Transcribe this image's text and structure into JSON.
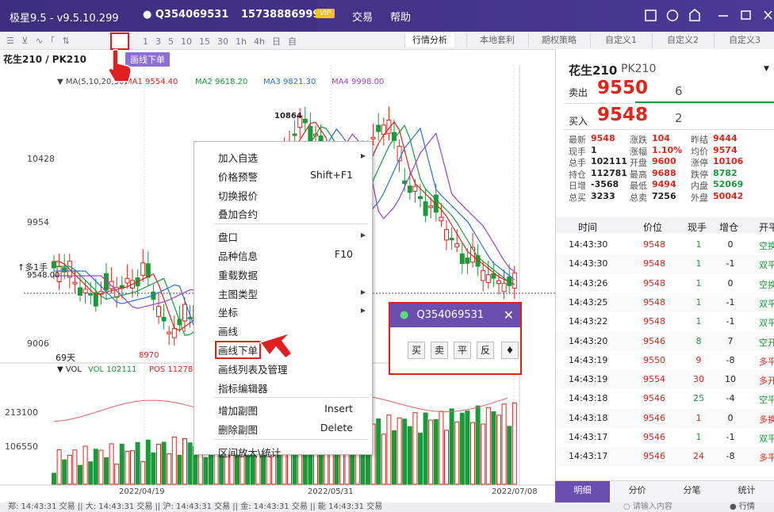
{
  "title_bar": {
    "app": "极星9.5 - v9.5.10.299",
    "account": "Q354069531",
    "phone": "15738886999",
    "vip": "VIP",
    "menus": [
      "交易",
      "帮助"
    ]
  },
  "toolbar": {
    "periods": [
      "1",
      "3",
      "5",
      "10",
      "15",
      "30",
      "1h",
      "4h",
      "日",
      "自"
    ],
    "tabs": [
      "行情分析",
      "本地套利",
      "期权策略",
      "自定义1",
      "自定义2",
      "自定义3"
    ],
    "tooltip": "画线下单"
  },
  "chart": {
    "symbol": "花生210 / PK210",
    "ma_label": "▼ MA(5,10,20,30)",
    "ma": [
      "MA1 9554.40",
      "MA2 9618.20",
      "MA3 9821.30",
      "MA4 9998.00"
    ],
    "price_ticks": [
      "10428",
      "9954",
      "9006"
    ],
    "high_label": "10864",
    "low_label": "8970",
    "days": "69天",
    "position_label": "↑多1手",
    "position_price": "9548.00",
    "vol_label": "▼ VOL",
    "vol": "VOL 102111",
    "pos": "POS 112781",
    "vol_ticks": [
      "213100",
      "106550"
    ],
    "dates": [
      "2022/04/19",
      "2022/05/31",
      "2022/07/08"
    ]
  },
  "context_menu": {
    "groups": [
      [
        {
          "label": "加入自选",
          "arrow": true
        },
        {
          "label": "价格预警",
          "shortcut": "Shift+F1"
        },
        {
          "label": "切换报价"
        },
        {
          "label": "叠加合约"
        }
      ],
      [
        {
          "label": "盘口",
          "arrow": true
        },
        {
          "label": "品种信息",
          "shortcut": "F10"
        },
        {
          "label": "重载数据"
        },
        {
          "label": "主图类型",
          "arrow": true
        },
        {
          "label": "坐标",
          "arrow": true
        },
        {
          "label": "画线"
        },
        {
          "label": "画线下单",
          "highlight": true
        },
        {
          "label": "画线列表及管理"
        },
        {
          "label": "指标编辑器"
        }
      ],
      [
        {
          "label": "增加副图",
          "shortcut": "Insert"
        },
        {
          "label": "删除副图",
          "shortcut": "Delete"
        }
      ],
      [
        {
          "label": "区间放大\\统计"
        }
      ]
    ]
  },
  "order_popup": {
    "account": "Q354069531",
    "buttons": [
      "买",
      "卖",
      "平",
      "反"
    ]
  },
  "quote_panel": {
    "name": "花生210",
    "code": "PK210",
    "ask_label": "卖出",
    "ask": "9550",
    "ask_vol": "6",
    "bid_label": "买入",
    "bid": "9548",
    "bid_vol": "2",
    "stats": [
      [
        "最新",
        "9548"
      ],
      [
        "涨跌",
        "104"
      ],
      [
        "昨结",
        "9444"
      ],
      [
        "现手",
        "1"
      ],
      [
        "涨幅",
        "1.10%"
      ],
      [
        "均价",
        "9574"
      ],
      [
        "总手",
        "102111"
      ],
      [
        "开盘",
        "9600"
      ],
      [
        "涨停",
        "10106"
      ],
      [
        "持仓",
        "112781"
      ],
      [
        "最高",
        "9688"
      ],
      [
        "跌停",
        "8782"
      ],
      [
        "日增",
        "-3568"
      ],
      [
        "最低",
        "9494"
      ],
      [
        "内盘",
        "52069"
      ],
      [
        "总买",
        "3233"
      ],
      [
        "总卖",
        "7256"
      ],
      [
        "外盘",
        "50042"
      ]
    ]
  },
  "ticks": {
    "headers": [
      "时间",
      "价位",
      "现手",
      "增仓",
      "开平"
    ],
    "rows": [
      [
        "14:43:30",
        "9548",
        "1",
        "0",
        "空换"
      ],
      [
        "14:43:30",
        "9548",
        "1",
        "-1",
        "双平"
      ],
      [
        "14:43:26",
        "9548",
        "1",
        "0",
        "空换"
      ],
      [
        "14:43:25",
        "9548",
        "1",
        "-1",
        "双平"
      ],
      [
        "14:43:22",
        "9548",
        "1",
        "-1",
        "双平"
      ],
      [
        "14:43:20",
        "9546",
        "8",
        "7",
        "空开"
      ],
      [
        "14:43:19",
        "9550",
        "9",
        "-8",
        "多平"
      ],
      [
        "14:43:19",
        "9554",
        "30",
        "10",
        "多开"
      ],
      [
        "14:43:18",
        "9546",
        "25",
        "-4",
        "空平"
      ],
      [
        "14:43:18",
        "9546",
        "1",
        "0",
        "多换"
      ],
      [
        "14:43:17",
        "9546",
        "1",
        "-1",
        "双平"
      ],
      [
        "14:43:17",
        "9546",
        "24",
        "-8",
        "多平"
      ]
    ]
  },
  "bottom_tabs": [
    "明细",
    "分价",
    "分笔",
    "统计"
  ],
  "status_bar": {
    "text": "郑: 14:43:31 交易 || 大: 14:43:31 交易 || 沪: 14:43:31 交易 || 金: 14:43:31 交易 || 能 14:43:31 交易",
    "search": "请输入内容",
    "quote": "行情"
  }
}
